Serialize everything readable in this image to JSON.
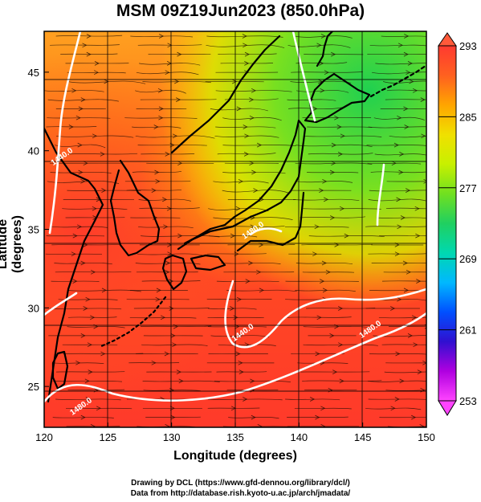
{
  "title": "MSM 09Z19Jun2023 (850.0hPa)",
  "axes": {
    "xlabel": "Longitude (degrees)",
    "ylabel": "Latitude  (degrees)",
    "x_ticks": [
      "120",
      "125",
      "130",
      "135",
      "140",
      "145",
      "150"
    ],
    "y_ticks": [
      "25",
      "30",
      "35",
      "40",
      "45"
    ]
  },
  "colorbar": {
    "tick_labels": [
      "293",
      "285",
      "277",
      "269",
      "261",
      "253"
    ],
    "stops": [
      "#ff44ff",
      "#b000e0",
      "#3010d0",
      "#0050ff",
      "#00b8ff",
      "#00d8b0",
      "#20d060",
      "#70e020",
      "#c8f000",
      "#f0e000",
      "#ffa500",
      "#ff6020",
      "#ff3a30"
    ]
  },
  "contours": [
    "1440.0",
    "1440.0",
    "1480.0",
    "1480.0",
    "1480.0"
  ],
  "credits": {
    "line1": "Drawing by DCL (https://www.gfd-dennou.org/library/dcl/)",
    "line2": "Data from http://database.rish.kyoto-u.ac.jp/arch/jmadata/"
  },
  "chart_data": {
    "type": "heatmap",
    "title": "MSM 09Z19Jun2023 (850.0hPa)",
    "xlabel": "Longitude (degrees)",
    "ylabel": "Latitude  (degrees)",
    "xlim": [
      120,
      150
    ],
    "ylim": [
      22.4,
      47.6
    ],
    "color_range": [
      253,
      293
    ],
    "x_ticks": [
      120,
      125,
      130,
      135,
      140,
      145,
      150
    ],
    "y_ticks": [
      25,
      30,
      35,
      40,
      45
    ],
    "grid": true,
    "colorbar_ticks": [
      293,
      285,
      277,
      269,
      261,
      253
    ],
    "contour_labels": [
      {
        "label": "1440.0",
        "lon": 121.5,
        "lat": 39.5
      },
      {
        "label": "1440.0",
        "lon": 135.7,
        "lat": 28.3
      },
      {
        "label": "1480.0",
        "lon": 123.0,
        "lat": 23.6
      },
      {
        "label": "1480.0",
        "lon": 145.7,
        "lat": 28.5
      },
      {
        "label": "1480.0",
        "lon": 136.5,
        "lat": 34.8
      }
    ]
  }
}
